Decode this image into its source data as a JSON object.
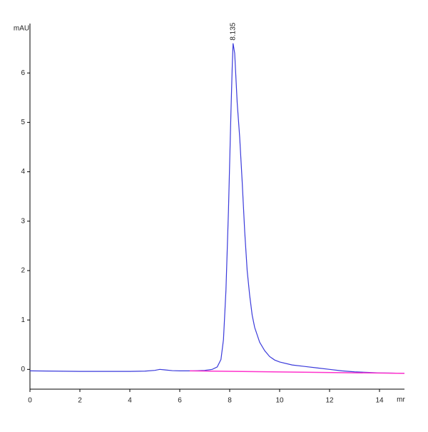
{
  "chart_data": {
    "type": "line",
    "y_label": "mAU",
    "x_label": "mr",
    "xlim": [
      0,
      15
    ],
    "xticks": [
      0,
      2,
      4,
      6,
      8,
      10,
      12,
      14
    ],
    "ylim": [
      -0.4,
      7.0
    ],
    "yticks": [
      0,
      1,
      2,
      3,
      4,
      5,
      6
    ],
    "series": [
      {
        "color": "#3a3adb",
        "x": [
          0,
          1,
          2,
          3,
          4,
          4.6,
          5,
          5.2,
          5.4,
          5.7,
          6,
          6.5,
          7,
          7.3,
          7.5,
          7.65,
          7.75,
          7.85,
          7.95,
          8.05,
          8.1,
          8.135,
          8.2,
          8.3,
          8.4,
          8.5,
          8.6,
          8.7,
          8.8,
          8.9,
          9.0,
          9.2,
          9.4,
          9.6,
          9.8,
          10,
          10.5,
          11,
          11.5,
          12,
          12.5,
          13,
          13.5,
          14,
          14.5,
          15
        ],
        "values": [
          -0.03,
          -0.035,
          -0.04,
          -0.04,
          -0.04,
          -0.035,
          -0.02,
          0.0,
          -0.01,
          -0.025,
          -0.03,
          -0.03,
          -0.02,
          0.0,
          0.05,
          0.2,
          0.6,
          1.6,
          3.2,
          5.2,
          6.1,
          6.6,
          6.4,
          5.4,
          4.7,
          3.8,
          2.8,
          2.0,
          1.5,
          1.1,
          0.85,
          0.55,
          0.38,
          0.26,
          0.19,
          0.15,
          0.09,
          0.06,
          0.03,
          0.0,
          -0.03,
          -0.05,
          -0.06,
          -0.07,
          -0.075,
          -0.08
        ]
      },
      {
        "color": "#ff33cc",
        "x": [
          6.4,
          15
        ],
        "values": [
          -0.03,
          -0.08
        ]
      }
    ],
    "annotations": [
      {
        "text": "8.135",
        "x": 8.135,
        "y": 6.6
      }
    ]
  }
}
